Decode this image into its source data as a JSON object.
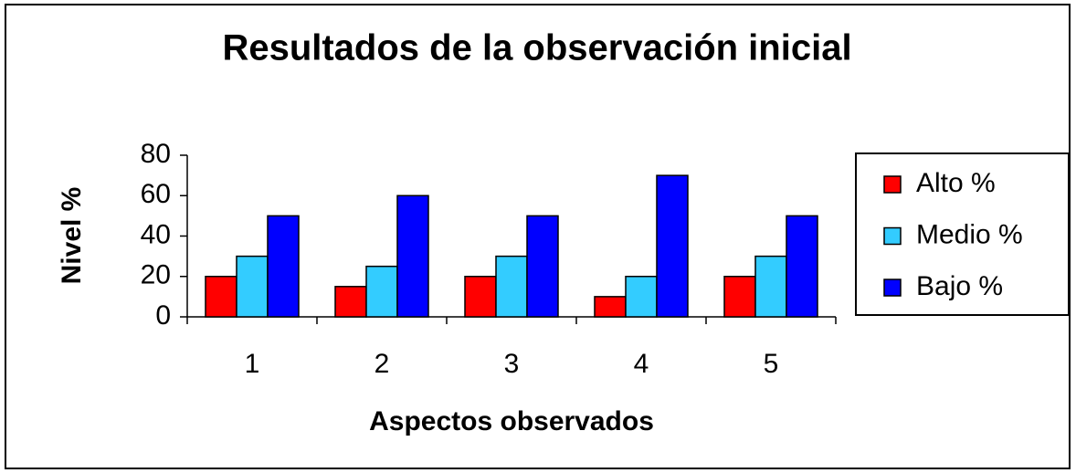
{
  "chart_data": {
    "type": "bar",
    "title": "Resultados de la observación inicial",
    "x_label": "Aspectos observados",
    "y_label": "Nivel %",
    "categories": [
      "1",
      "2",
      "3",
      "4",
      "5"
    ],
    "series": [
      {
        "name": "Alto %",
        "color": "#ff0000",
        "values": [
          20,
          15,
          20,
          10,
          20
        ]
      },
      {
        "name": "Medio %",
        "color": "#33ccff",
        "values": [
          30,
          25,
          30,
          20,
          30
        ]
      },
      {
        "name": "Bajo %",
        "color": "#0000ff",
        "values": [
          50,
          60,
          50,
          70,
          50
        ]
      }
    ],
    "ylim": [
      0,
      80
    ],
    "yticks": [
      0,
      20,
      40,
      60,
      80
    ],
    "grid": false,
    "legend": "right"
  }
}
